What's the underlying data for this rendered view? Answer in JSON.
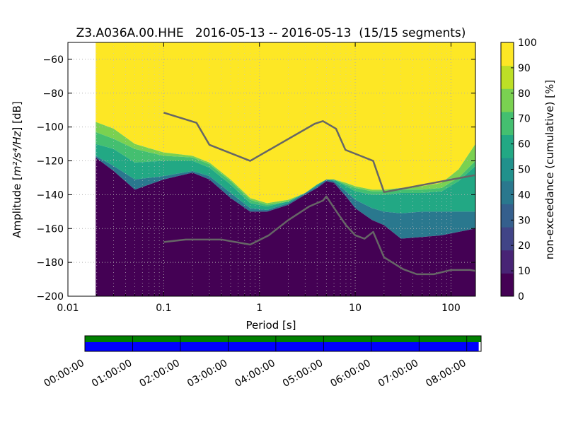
{
  "chart_data": {
    "type": "heatmap",
    "title": "Z3.A036A.00.HHE   2016-05-13 -- 2016-05-13  (15/15 segments)",
    "xlabel": "Period [s]",
    "ylabel": "Amplitude [$m^2/s^4/Hz$] [dB]",
    "ylabel_parts": {
      "prefix": "Amplitude [",
      "math": "m²/s⁴/Hz",
      "suffix": "] [dB]"
    },
    "x_scale": "log",
    "xlim": [
      0.01,
      180
    ],
    "ylim": [
      -200,
      -50
    ],
    "x_ticks": [
      {
        "value": 0.01,
        "label": "0.01"
      },
      {
        "value": 0.1,
        "label": "0.1"
      },
      {
        "value": 1,
        "label": "1"
      },
      {
        "value": 10,
        "label": "10"
      },
      {
        "value": 100,
        "label": "100"
      }
    ],
    "y_ticks": [
      -60,
      -80,
      -100,
      -120,
      -140,
      -160,
      -180,
      -200
    ],
    "grid": true,
    "colorbar": {
      "label": "non-exceedance (cumulative) [%]",
      "range": [
        0,
        100
      ],
      "ticks": [
        0,
        10,
        20,
        30,
        40,
        50,
        60,
        70,
        80,
        90,
        100
      ],
      "colors": [
        "#440154",
        "#482475",
        "#414487",
        "#355f8d",
        "#2a788e",
        "#21918c",
        "#22a884",
        "#44bf70",
        "#7ad151",
        "#bddf26",
        "#fde725"
      ]
    },
    "data_start_period": 0.0195,
    "heatmap_bands": {
      "period": [
        0.0195,
        0.03,
        0.05,
        0.1,
        0.2,
        0.3,
        0.5,
        0.8,
        1.2,
        2,
        3,
        4,
        5,
        6,
        8,
        10,
        15,
        20,
        30,
        50,
        80,
        120,
        180
      ],
      "p00": [
        -118,
        -126,
        -137,
        -131,
        -127,
        -131,
        -142,
        -150,
        -150,
        -146,
        -140,
        -136,
        -132,
        -133,
        -141,
        -148,
        -155,
        -158,
        -166,
        -165,
        -164,
        -162,
        -160
      ],
      "p50": [
        -117,
        -123,
        -131,
        -129,
        -126,
        -129,
        -139,
        -148,
        -149,
        -145,
        -139,
        -135,
        -131,
        -132,
        -138,
        -143,
        -148,
        -150,
        -151,
        -150,
        -150,
        -150,
        -150
      ],
      "p80": [
        -110,
        -113,
        -121,
        -120,
        -120,
        -124,
        -134,
        -145,
        -147,
        -144,
        -139,
        -134,
        -131,
        -131,
        -135,
        -138,
        -140,
        -140,
        -139,
        -139,
        -138,
        -132,
        -123
      ],
      "p90": [
        -103,
        -107,
        -113,
        -117,
        -118,
        -122,
        -132,
        -143,
        -146,
        -144,
        -139,
        -134,
        -131,
        -131,
        -134,
        -136,
        -138,
        -138,
        -137,
        -137,
        -136,
        -130,
        -120
      ],
      "p99": [
        -97,
        -101,
        -110,
        -115,
        -117,
        -121,
        -131,
        -142,
        -145,
        -143,
        -139,
        -134,
        -131,
        -131,
        -133,
        -135,
        -137,
        -137,
        -136,
        -135,
        -133,
        -125,
        -110
      ]
    },
    "series": [
      {
        "period": [
          0.1,
          0.22,
          0.3,
          0.8,
          3.8,
          4.6,
          6.3,
          7.9,
          15.4,
          20,
          176
        ],
        "values": [
          -91.5,
          -97.5,
          -110.5,
          -120,
          -98,
          -96.5,
          -101,
          -113.5,
          -120,
          -138.5,
          -128.5
        ]
      },
      {
        "period": [
          0.1,
          0.17,
          0.4,
          0.8,
          1.25,
          2,
          3.3,
          4.6,
          5,
          6.3,
          8,
          10,
          12.5,
          15.4,
          20,
          31.6,
          44,
          66,
          100,
          158,
          180
        ],
        "values": [
          -168,
          -166.5,
          -166.5,
          -169.5,
          -164,
          -155,
          -147,
          -143.5,
          -141,
          -149.5,
          -158,
          -164,
          -166,
          -162,
          -177,
          -184,
          -187,
          -187,
          -184.5,
          -184.5,
          -185
        ]
      }
    ]
  },
  "timeline": {
    "tick_labels": [
      "00:00:00",
      "01:00:00",
      "02:00:00",
      "03:00:00",
      "04:00:00",
      "05:00:00",
      "06:00:00",
      "07:00:00",
      "08:00:00"
    ],
    "coverage_end_hours": 8.25,
    "colors": {
      "available": "#008000",
      "used": "#0000ff"
    }
  }
}
